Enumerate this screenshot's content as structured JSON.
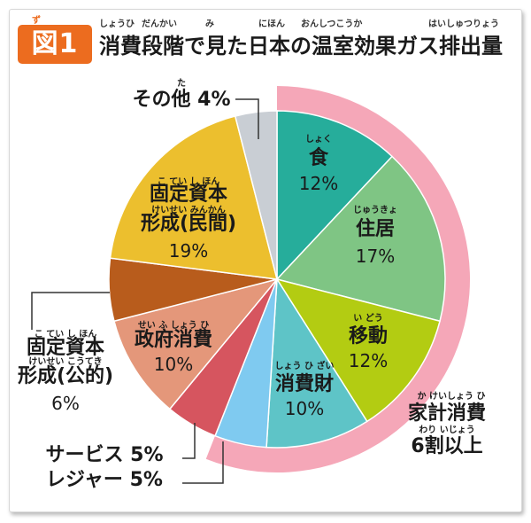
{
  "figure": {
    "badge": "図1",
    "badge_ruby": "ず",
    "title": "消費段階で見た日本の温室効果ガス排出量",
    "title_ruby": [
      {
        "text": "しょうひ",
        "dx": 0
      },
      {
        "text": "だんかい",
        "dx": 48
      },
      {
        "text": "み",
        "dx": 120
      },
      {
        "text": "にほん",
        "dx": 180
      },
      {
        "text": "おんしつこうか",
        "dx": 228
      },
      {
        "text": "はいしゅつりょう",
        "dx": 372
      }
    ]
  },
  "household_group": {
    "label_lines": [
      "家計消費",
      "6割以上"
    ],
    "ruby_lines": [
      "か けいしょう ひ",
      "わり いじょう"
    ],
    "color": "#f5a7b8"
  },
  "chart_data": {
    "type": "pie",
    "title": "消費段階で見た日本の温室効果ガス排出量",
    "unit": "%",
    "slices": [
      {
        "name": "食",
        "ruby": "しょく",
        "value": 12,
        "color": "#26ad9b",
        "text_color": "#1a1a1a"
      },
      {
        "name": "住居",
        "ruby": "じゅうきょ",
        "value": 17,
        "color": "#7fc584",
        "text_color": "#1a1a1a"
      },
      {
        "name": "移動",
        "ruby": "い どう",
        "value": 12,
        "color": "#b3cc12",
        "text_color": "#1a1a1a"
      },
      {
        "name": "消費財",
        "ruby": "しょう ひ ざい",
        "value": 10,
        "color": "#5ec4c7",
        "text_color": "#1a1a1a"
      },
      {
        "name": "レジャー",
        "ruby": "",
        "value": 5,
        "color": "#7fcaf0",
        "text_color": "#1a1a1a"
      },
      {
        "name": "サービス",
        "ruby": "",
        "value": 5,
        "color": "#d6555f",
        "text_color": "#1a1a1a"
      },
      {
        "name": "政府消費",
        "ruby": "せい ふ しょう ひ",
        "value": 10,
        "color": "#e4977a",
        "text_color": "#1a1a1a"
      },
      {
        "name": "固定資本形成(公的)",
        "ruby": "こ てい し ほん / けいせい こうてき",
        "value": 6,
        "color": "#b85c1c",
        "text_color": "#1a1a1a"
      },
      {
        "name": "固定資本形成(民間)",
        "ruby": "こ てい し ほん / けいせい みんかん",
        "value": 19,
        "color": "#ecbf2e",
        "text_color": "#1a1a1a"
      },
      {
        "name": "その他",
        "ruby": "た",
        "value": 4,
        "color": "#c9ced4",
        "text_color": "#1a1a1a"
      }
    ]
  },
  "labels": {
    "food": {
      "lines": [
        "食",
        "12%"
      ],
      "ruby": "しょく"
    },
    "housing": {
      "lines": [
        "住居",
        "17%"
      ],
      "ruby": "じゅうきょ"
    },
    "transport": {
      "lines": [
        "移動",
        "12%"
      ],
      "ruby": "い どう"
    },
    "consumer_goods": {
      "lines": [
        "消費財",
        "10%"
      ],
      "ruby": "しょう ひ ざい"
    },
    "gov": {
      "lines": [
        "政府消費",
        "10%"
      ],
      "ruby": "せい ふ しょう ひ"
    },
    "private_capital": {
      "lines": [
        "固定資本",
        "形成(民間)",
        "19%"
      ],
      "ruby": [
        "こ てい し ほん",
        "けいせい みんかん"
      ]
    },
    "public_capital": {
      "lines": [
        "固定資本",
        "形成(公的)",
        "6%"
      ],
      "ruby": [
        "こ てい し ほん",
        "けいせい こうてき"
      ]
    },
    "service": {
      "text": "サービス 5%"
    },
    "leisure": {
      "text": "レジャー 5%"
    },
    "other": {
      "text": "その他 4%",
      "ruby": "た"
    }
  }
}
